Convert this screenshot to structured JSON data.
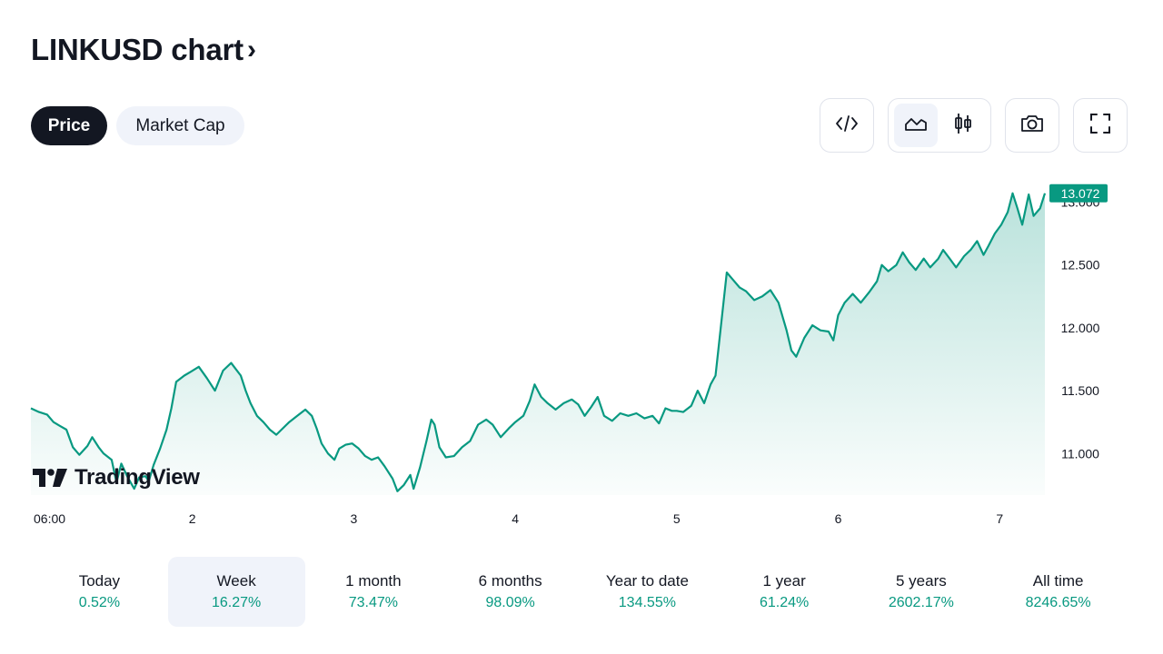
{
  "header": {
    "title": "LINKUSD chart",
    "chevron": "›"
  },
  "toggle": {
    "price_label": "Price",
    "market_cap_label": "Market Cap",
    "active": "price"
  },
  "toolbar": {
    "icons": [
      "embed-code-icon",
      "area-chart-icon",
      "candlestick-icon",
      "camera-icon",
      "fullscreen-icon"
    ],
    "active_type": "area"
  },
  "brand": {
    "name": "TradingView"
  },
  "colors": {
    "line": "#089981",
    "accent_text": "#089981",
    "price_badge": "#089981",
    "dark": "#131722",
    "pill_bg": "#f0f3fa"
  },
  "chart_data": {
    "type": "area",
    "symbol": "LINKUSD",
    "last_price": "13.072",
    "y_ticks": [
      "11.000",
      "11.500",
      "12.000",
      "12.500",
      "13.000"
    ],
    "ylim": [
      10.67,
      13.22
    ],
    "x_ticks": [
      {
        "label": "06:00",
        "t": 0.1
      },
      {
        "label": "2",
        "t": 1.0
      },
      {
        "label": "3",
        "t": 2.0
      },
      {
        "label": "4",
        "t": 3.0
      },
      {
        "label": "5",
        "t": 4.0
      },
      {
        "label": "6",
        "t": 5.0
      },
      {
        "label": "7",
        "t": 6.0
      }
    ],
    "points": [
      [
        0.0,
        11.36
      ],
      [
        0.05,
        11.33
      ],
      [
        0.1,
        11.31
      ],
      [
        0.14,
        11.25
      ],
      [
        0.18,
        11.22
      ],
      [
        0.22,
        11.19
      ],
      [
        0.26,
        11.05
      ],
      [
        0.3,
        10.99
      ],
      [
        0.35,
        11.06
      ],
      [
        0.38,
        11.13
      ],
      [
        0.42,
        11.05
      ],
      [
        0.45,
        11.0
      ],
      [
        0.5,
        10.95
      ],
      [
        0.53,
        10.77
      ],
      [
        0.56,
        10.92
      ],
      [
        0.6,
        10.81
      ],
      [
        0.64,
        10.72
      ],
      [
        0.67,
        10.81
      ],
      [
        0.71,
        10.82
      ],
      [
        0.73,
        10.78
      ],
      [
        0.76,
        10.91
      ],
      [
        0.8,
        11.04
      ],
      [
        0.84,
        11.19
      ],
      [
        0.87,
        11.36
      ],
      [
        0.9,
        11.57
      ],
      [
        0.95,
        11.62
      ],
      [
        0.99,
        11.65
      ],
      [
        1.04,
        11.69
      ],
      [
        1.09,
        11.6
      ],
      [
        1.14,
        11.5
      ],
      [
        1.19,
        11.66
      ],
      [
        1.24,
        11.72
      ],
      [
        1.27,
        11.67
      ],
      [
        1.3,
        11.62
      ],
      [
        1.33,
        11.5
      ],
      [
        1.36,
        11.4
      ],
      [
        1.4,
        11.3
      ],
      [
        1.44,
        11.25
      ],
      [
        1.48,
        11.19
      ],
      [
        1.52,
        11.15
      ],
      [
        1.56,
        11.2
      ],
      [
        1.6,
        11.25
      ],
      [
        1.65,
        11.3
      ],
      [
        1.7,
        11.35
      ],
      [
        1.74,
        11.3
      ],
      [
        1.77,
        11.2
      ],
      [
        1.8,
        11.08
      ],
      [
        1.84,
        11.0
      ],
      [
        1.88,
        10.95
      ],
      [
        1.91,
        11.04
      ],
      [
        1.95,
        11.07
      ],
      [
        1.99,
        11.08
      ],
      [
        2.03,
        11.04
      ],
      [
        2.07,
        10.98
      ],
      [
        2.11,
        10.95
      ],
      [
        2.15,
        10.97
      ],
      [
        2.19,
        10.9
      ],
      [
        2.24,
        10.8
      ],
      [
        2.27,
        10.7
      ],
      [
        2.31,
        10.75
      ],
      [
        2.35,
        10.83
      ],
      [
        2.37,
        10.72
      ],
      [
        2.41,
        10.89
      ],
      [
        2.45,
        11.1
      ],
      [
        2.48,
        11.27
      ],
      [
        2.5,
        11.23
      ],
      [
        2.53,
        11.05
      ],
      [
        2.57,
        10.97
      ],
      [
        2.62,
        10.98
      ],
      [
        2.67,
        11.05
      ],
      [
        2.72,
        11.1
      ],
      [
        2.77,
        11.23
      ],
      [
        2.82,
        11.27
      ],
      [
        2.86,
        11.23
      ],
      [
        2.91,
        11.13
      ],
      [
        2.96,
        11.2
      ],
      [
        3.0,
        11.25
      ],
      [
        3.05,
        11.3
      ],
      [
        3.09,
        11.42
      ],
      [
        3.12,
        11.55
      ],
      [
        3.16,
        11.45
      ],
      [
        3.2,
        11.4
      ],
      [
        3.25,
        11.35
      ],
      [
        3.3,
        11.4
      ],
      [
        3.35,
        11.43
      ],
      [
        3.39,
        11.39
      ],
      [
        3.43,
        11.3
      ],
      [
        3.47,
        11.37
      ],
      [
        3.51,
        11.45
      ],
      [
        3.55,
        11.3
      ],
      [
        3.6,
        11.26
      ],
      [
        3.65,
        11.32
      ],
      [
        3.7,
        11.3
      ],
      [
        3.75,
        11.32
      ],
      [
        3.8,
        11.28
      ],
      [
        3.85,
        11.3
      ],
      [
        3.89,
        11.24
      ],
      [
        3.93,
        11.36
      ],
      [
        3.97,
        11.34
      ],
      [
        4.0,
        11.34
      ],
      [
        4.04,
        11.33
      ],
      [
        4.09,
        11.38
      ],
      [
        4.13,
        11.5
      ],
      [
        4.17,
        11.4
      ],
      [
        4.21,
        11.55
      ],
      [
        4.24,
        11.62
      ],
      [
        4.27,
        11.97
      ],
      [
        4.31,
        12.44
      ],
      [
        4.35,
        12.38
      ],
      [
        4.39,
        12.32
      ],
      [
        4.43,
        12.29
      ],
      [
        4.48,
        12.22
      ],
      [
        4.53,
        12.25
      ],
      [
        4.58,
        12.3
      ],
      [
        4.63,
        12.2
      ],
      [
        4.68,
        11.98
      ],
      [
        4.71,
        11.82
      ],
      [
        4.74,
        11.77
      ],
      [
        4.79,
        11.92
      ],
      [
        4.84,
        12.02
      ],
      [
        4.89,
        11.98
      ],
      [
        4.94,
        11.97
      ],
      [
        4.97,
        11.9
      ],
      [
        5.0,
        12.1
      ],
      [
        5.04,
        12.2
      ],
      [
        5.09,
        12.27
      ],
      [
        5.14,
        12.2
      ],
      [
        5.19,
        12.28
      ],
      [
        5.24,
        12.37
      ],
      [
        5.27,
        12.5
      ],
      [
        5.31,
        12.45
      ],
      [
        5.36,
        12.5
      ],
      [
        5.4,
        12.6
      ],
      [
        5.44,
        12.52
      ],
      [
        5.48,
        12.46
      ],
      [
        5.53,
        12.55
      ],
      [
        5.57,
        12.48
      ],
      [
        5.62,
        12.55
      ],
      [
        5.65,
        12.62
      ],
      [
        5.69,
        12.55
      ],
      [
        5.73,
        12.48
      ],
      [
        5.78,
        12.57
      ],
      [
        5.82,
        12.62
      ],
      [
        5.86,
        12.69
      ],
      [
        5.9,
        12.58
      ],
      [
        5.93,
        12.65
      ],
      [
        5.97,
        12.75
      ],
      [
        6.01,
        12.82
      ],
      [
        6.05,
        12.92
      ],
      [
        6.08,
        13.07
      ],
      [
        6.11,
        12.95
      ],
      [
        6.14,
        12.82
      ],
      [
        6.18,
        13.06
      ],
      [
        6.21,
        12.89
      ],
      [
        6.25,
        12.95
      ],
      [
        6.28,
        13.07
      ]
    ],
    "xlim": [
      0.0,
      6.28
    ]
  },
  "periods": [
    {
      "label": "Today",
      "value": "0.52%"
    },
    {
      "label": "Week",
      "value": "16.27%",
      "active": true
    },
    {
      "label": "1 month",
      "value": "73.47%"
    },
    {
      "label": "6 months",
      "value": "98.09%"
    },
    {
      "label": "Year to date",
      "value": "134.55%"
    },
    {
      "label": "1 year",
      "value": "61.24%"
    },
    {
      "label": "5 years",
      "value": "2602.17%"
    },
    {
      "label": "All time",
      "value": "8246.65%"
    }
  ]
}
